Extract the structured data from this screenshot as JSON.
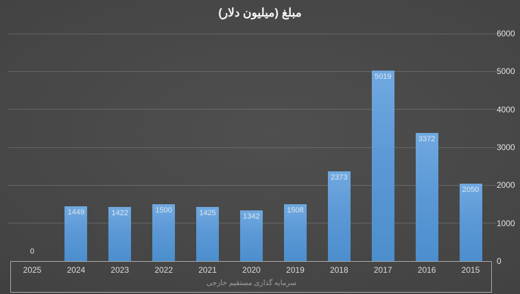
{
  "chart_data": {
    "type": "bar",
    "title": "مبلغ (میلیون دلار)",
    "series_name": "سرمایه گذاری مستقیم خارجی",
    "categories": [
      "2025",
      "2024",
      "2023",
      "2022",
      "2021",
      "2020",
      "2019",
      "2018",
      "2017",
      "2016",
      "2015"
    ],
    "values": [
      0,
      1449,
      1422,
      1500,
      1425,
      1342,
      1508,
      2373,
      5019,
      3372,
      2050
    ],
    "yticks": [
      0,
      1000,
      2000,
      3000,
      4000,
      5000,
      6000
    ],
    "ylim": [
      0,
      6000
    ],
    "value_axis_side": "right",
    "grid": true,
    "legend_position": "bottom",
    "colors": {
      "bar": "#5B9BD5",
      "data_label": "#DDE6F0",
      "tick_label": "#E4E4E4",
      "axis_border": "#ABABAB",
      "gridline": "#5E5E5E",
      "background": "#474747",
      "caption": "#A0A0A0",
      "title": "#F5F5F5"
    }
  }
}
